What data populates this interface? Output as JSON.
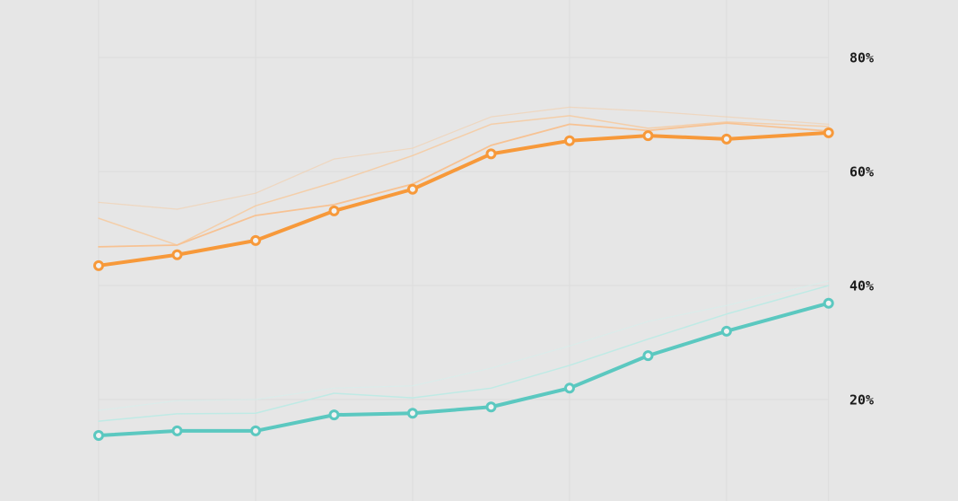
{
  "chart_data": {
    "type": "line",
    "x": [
      0,
      1,
      2,
      3,
      4,
      5,
      6,
      7,
      8,
      9.3
    ],
    "xlim": [
      -1.257,
      10.949
    ],
    "xticks": [
      0,
      2,
      4,
      6,
      8,
      9.3
    ],
    "ylim": [
      2.2,
      90.1
    ],
    "yticks": [
      {
        "value": 20,
        "label": "20%"
      },
      {
        "value": 40,
        "label": "40%"
      },
      {
        "value": 60,
        "label": "60%"
      },
      {
        "value": 80,
        "label": "80%"
      }
    ],
    "grid": true,
    "series": [
      {
        "color": "#f7c89a",
        "opacity": 0.5,
        "width": 1.2,
        "markers": false,
        "values": [
          54.6,
          53.4,
          56.2,
          62.2,
          64.1,
          69.6,
          71.3,
          70.6,
          69.6,
          68.3
        ]
      },
      {
        "color": "#f7c89a",
        "opacity": 0.8,
        "width": 1.5,
        "markers": false,
        "values": [
          51.8,
          47.1,
          54.0,
          58.1,
          62.8,
          68.3,
          69.8,
          67.6,
          68.7,
          67.9
        ]
      },
      {
        "color": "#f7c293",
        "opacity": 1,
        "width": 1.8,
        "markers": false,
        "values": [
          46.8,
          47.1,
          52.3,
          54.2,
          57.8,
          64.6,
          68.3,
          67.2,
          68.5,
          67.1
        ]
      },
      {
        "color": "#d4f0ec",
        "opacity": 0.6,
        "width": 1.2,
        "markers": false,
        "values": [
          18.1,
          19.8,
          20.0,
          22.0,
          22.4,
          25.5,
          29.4,
          33.7,
          36.5,
          40.8
        ]
      },
      {
        "color": "#bfeae5",
        "opacity": 1,
        "width": 1.5,
        "markers": false,
        "values": [
          16.2,
          17.5,
          17.6,
          21.1,
          20.3,
          22.0,
          26.0,
          30.6,
          35.0,
          40.0
        ]
      },
      {
        "color": "#f7993a",
        "opacity": 1,
        "width": 4,
        "markers": true,
        "values": [
          43.5,
          45.4,
          47.9,
          53.1,
          56.9,
          63.1,
          65.4,
          66.3,
          65.7,
          66.8
        ]
      },
      {
        "color": "#5bc8c0",
        "opacity": 1,
        "width": 4,
        "markers": true,
        "values": [
          13.7,
          14.5,
          14.5,
          17.3,
          17.6,
          18.7,
          22.0,
          27.7,
          32.0,
          36.9
        ]
      }
    ]
  }
}
